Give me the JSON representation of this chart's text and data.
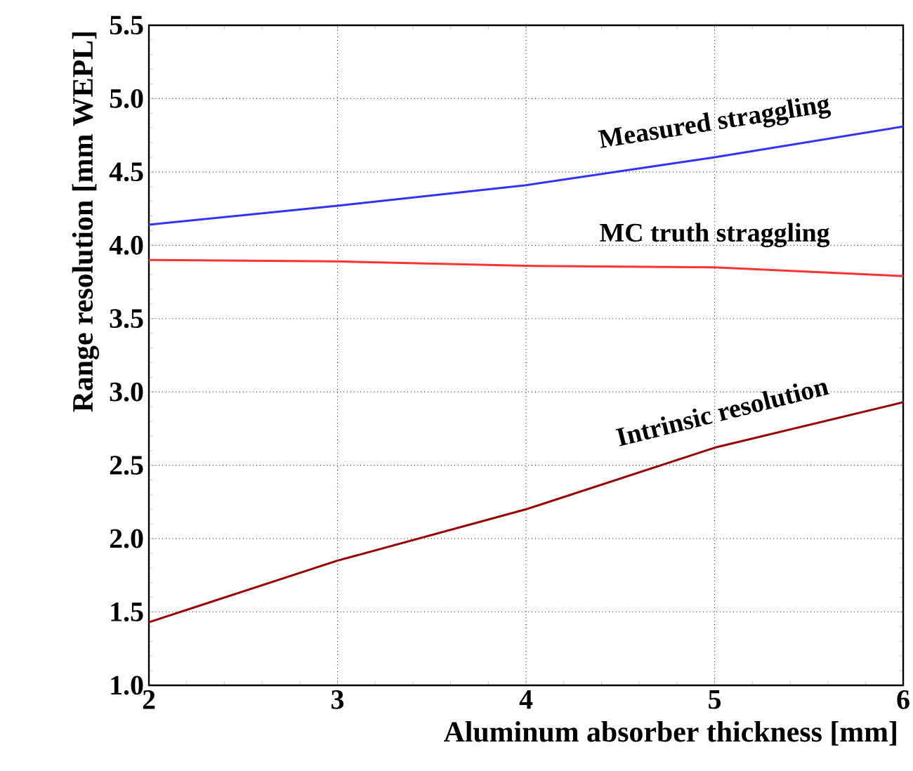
{
  "chart_data": {
    "type": "line",
    "xlabel": "Aluminum absorber thickness [mm]",
    "ylabel": "Range resolution [mm WEPL]",
    "x": [
      2,
      3,
      4,
      5,
      6
    ],
    "series": [
      {
        "color": "#3333ff",
        "values": [
          4.14,
          4.27,
          4.41,
          4.6,
          4.81
        ]
      },
      {
        "color": "#ff3333",
        "values": [
          3.9,
          3.89,
          3.86,
          3.85,
          3.79
        ]
      },
      {
        "color": "#990000",
        "values": [
          1.43,
          1.85,
          2.2,
          2.62,
          2.93
        ]
      }
    ],
    "annotations": [
      "Measured straggling",
      "MC truth straggling",
      "Intrinsic resolution"
    ],
    "xlim": [
      2,
      6
    ],
    "ylim": [
      1.0,
      5.5
    ],
    "xticks": [
      2,
      3,
      4,
      5,
      6
    ],
    "yticks": [
      {
        "value": 1.0,
        "label": "1.0"
      },
      {
        "value": 1.5,
        "label": "1.5"
      },
      {
        "value": 2.0,
        "label": "2.0"
      },
      {
        "value": 2.5,
        "label": "2.5"
      },
      {
        "value": 3.0,
        "label": "3.0"
      },
      {
        "value": 3.5,
        "label": "3.5"
      },
      {
        "value": 4.0,
        "label": "4.0"
      },
      {
        "value": 4.5,
        "label": "4.5"
      },
      {
        "value": 5.0,
        "label": "5.0"
      },
      {
        "value": 5.5,
        "label": "5.5"
      }
    ],
    "grid": true,
    "marker": "none",
    "line_style": "solid"
  }
}
